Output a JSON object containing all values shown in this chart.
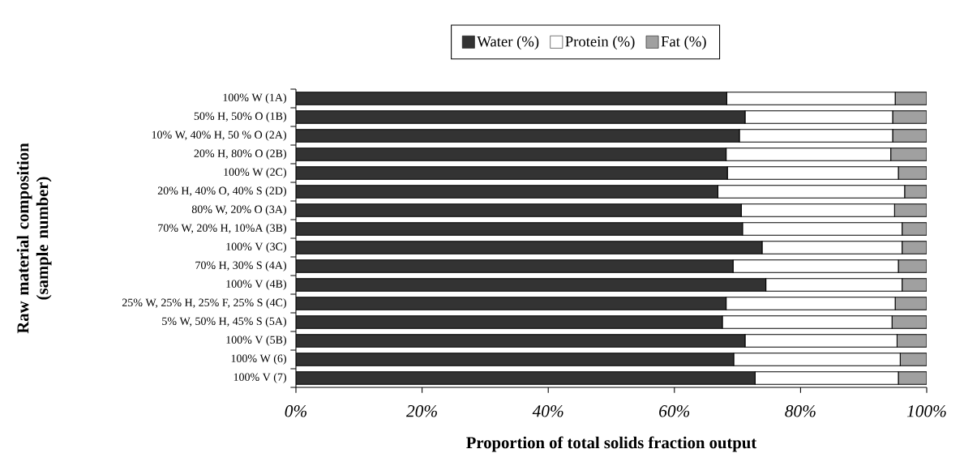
{
  "chart_data": {
    "type": "bar",
    "orientation": "horizontal",
    "stacked": true,
    "xlabel": "Proportion of total solids fraction output",
    "ylabel": "Raw material composition (sample number)",
    "categories": [
      "100% W (1A)",
      "50% H, 50% O (1B)",
      "10% W, 40% H, 50 % O (2A)",
      "20% H, 80% O (2B)",
      "100% W (2C)",
      "20% H, 40% O, 40% S (2D)",
      "80% W, 20% O (3A)",
      "70% W, 20% H, 10%A (3B)",
      "100% V (3C)",
      "70% H, 30% S (4A)",
      "100% V (4B)",
      "25% W, 25% H, 25% F, 25% S (4C)",
      "5% W, 50% H, 45% S (5A)",
      "100% V (5B)",
      "100% W (6)",
      "100% V (7)"
    ],
    "series": [
      {
        "name": "Water (%)",
        "color": "#333333",
        "values": [
          68.3,
          71.2,
          70.3,
          68.2,
          68.4,
          66.9,
          70.6,
          70.8,
          73.9,
          69.3,
          74.5,
          68.2,
          67.6,
          71.2,
          69.4,
          72.8
        ]
      },
      {
        "name": "Protein (%)",
        "color": "#ffffff",
        "values": [
          26.7,
          23.4,
          24.3,
          26.1,
          27.1,
          29.6,
          24.3,
          25.3,
          22.2,
          26.2,
          21.6,
          26.8,
          26.9,
          24.1,
          26.4,
          22.7
        ]
      },
      {
        "name": "Fat (%)",
        "color": "#a0a0a0",
        "values": [
          5.0,
          5.4,
          5.4,
          5.7,
          4.5,
          3.5,
          5.1,
          3.9,
          3.9,
          4.5,
          3.9,
          5.0,
          5.5,
          4.7,
          4.2,
          4.5
        ]
      }
    ],
    "xlim": [
      0,
      100
    ],
    "xticks": [
      {
        "value": 0,
        "label": "0%"
      },
      {
        "value": 20,
        "label": "20%"
      },
      {
        "value": 40,
        "label": "40%"
      },
      {
        "value": 60,
        "label": "60%"
      },
      {
        "value": 80,
        "label": "80%"
      },
      {
        "value": 100,
        "label": "100%"
      }
    ],
    "grid": false,
    "legend": "top"
  }
}
